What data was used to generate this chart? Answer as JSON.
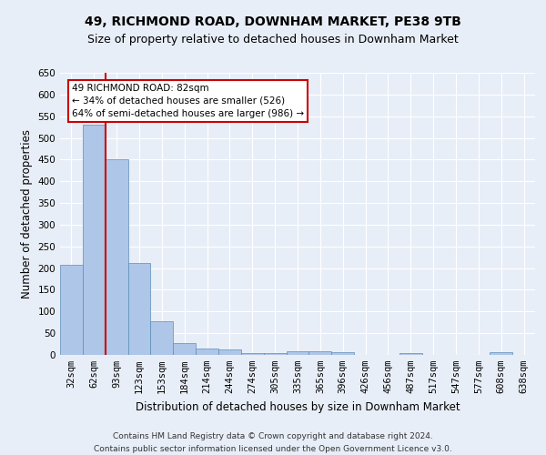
{
  "title": "49, RICHMOND ROAD, DOWNHAM MARKET, PE38 9TB",
  "subtitle": "Size of property relative to detached houses in Downham Market",
  "xlabel": "Distribution of detached houses by size in Downham Market",
  "ylabel": "Number of detached properties",
  "categories": [
    "32sqm",
    "62sqm",
    "93sqm",
    "123sqm",
    "153sqm",
    "184sqm",
    "214sqm",
    "244sqm",
    "274sqm",
    "305sqm",
    "335sqm",
    "365sqm",
    "396sqm",
    "426sqm",
    "456sqm",
    "487sqm",
    "517sqm",
    "547sqm",
    "577sqm",
    "608sqm",
    "638sqm"
  ],
  "values": [
    208,
    530,
    450,
    212,
    78,
    27,
    15,
    12,
    5,
    5,
    8,
    8,
    6,
    0,
    0,
    5,
    0,
    0,
    0,
    6,
    0
  ],
  "bar_color": "#aec6e8",
  "bar_edge_color": "#5b8db8",
  "annotation_text": "49 RICHMOND ROAD: 82sqm\n← 34% of detached houses are smaller (526)\n64% of semi-detached houses are larger (986) →",
  "annotation_box_color": "#ffffff",
  "annotation_box_edge": "#cc0000",
  "marker_line_color": "#cc0000",
  "ylim": [
    0,
    650
  ],
  "yticks": [
    0,
    50,
    100,
    150,
    200,
    250,
    300,
    350,
    400,
    450,
    500,
    550,
    600,
    650
  ],
  "footer1": "Contains HM Land Registry data © Crown copyright and database right 2024.",
  "footer2": "Contains public sector information licensed under the Open Government Licence v3.0.",
  "bg_color": "#e8eef7",
  "plot_bg_color": "#e8eef7",
  "title_fontsize": 10,
  "subtitle_fontsize": 9,
  "axis_label_fontsize": 8.5,
  "tick_fontsize": 7.5,
  "annotation_fontsize": 7.5,
  "footer_fontsize": 6.5
}
